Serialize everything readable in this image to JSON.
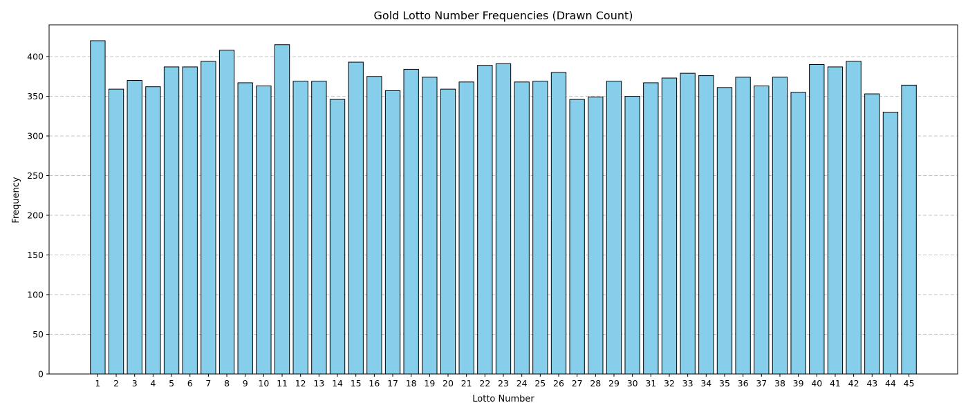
{
  "chart_data": {
    "type": "bar",
    "title": "Gold Lotto Number Frequencies (Drawn Count)",
    "xlabel": "Lotto Number",
    "ylabel": "Frequency",
    "ylim": [
      0,
      440
    ],
    "yticks": [
      0,
      50,
      100,
      150,
      200,
      250,
      300,
      350,
      400
    ],
    "grid": "y-dashed",
    "bar_color": "#87CEEB",
    "edge_color": "#000000",
    "categories": [
      "1",
      "2",
      "3",
      "4",
      "5",
      "6",
      "7",
      "8",
      "9",
      "10",
      "11",
      "12",
      "13",
      "14",
      "15",
      "16",
      "17",
      "18",
      "19",
      "20",
      "21",
      "22",
      "23",
      "24",
      "25",
      "26",
      "27",
      "28",
      "29",
      "30",
      "31",
      "32",
      "33",
      "34",
      "35",
      "36",
      "37",
      "38",
      "39",
      "40",
      "41",
      "42",
      "43",
      "44",
      "45"
    ],
    "values": [
      420,
      359,
      370,
      362,
      387,
      387,
      394,
      408,
      367,
      363,
      415,
      369,
      369,
      346,
      393,
      375,
      357,
      384,
      374,
      359,
      368,
      389,
      391,
      368,
      369,
      380,
      346,
      349,
      369,
      350,
      367,
      373,
      379,
      376,
      361,
      374,
      363,
      374,
      355,
      390,
      387,
      394,
      353,
      330,
      364
    ]
  }
}
